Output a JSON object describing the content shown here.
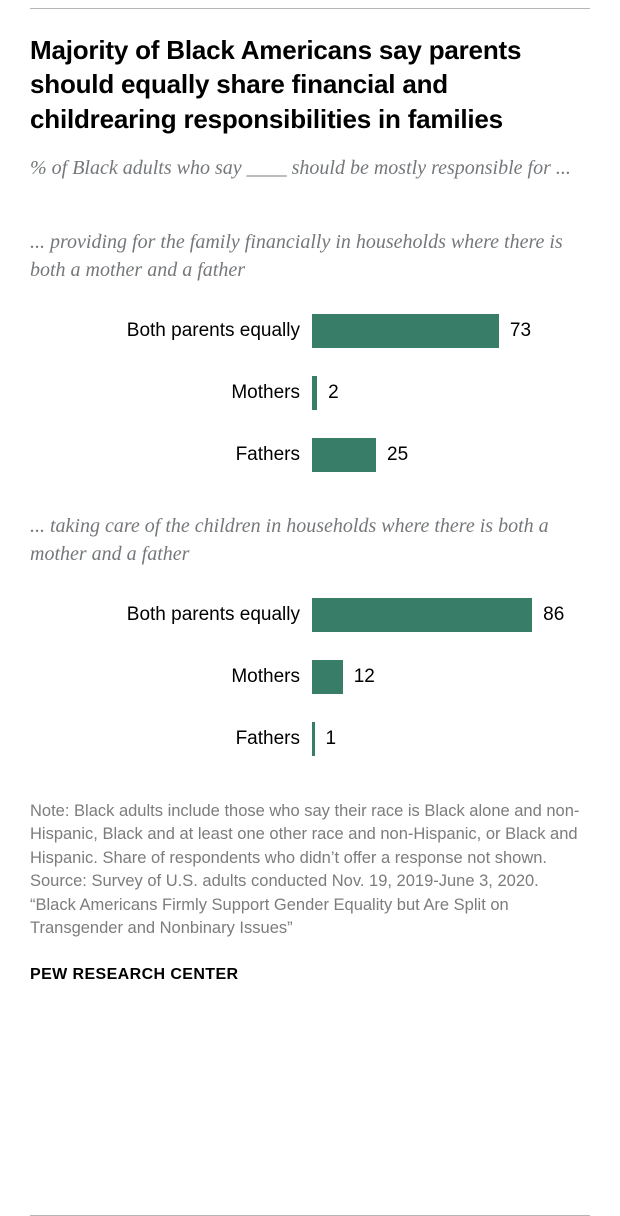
{
  "page": {
    "title": "Majority of Black Americans say parents should equally share financial and childrearing responsibilities in families",
    "subtitle": "% of Black adults who say ____ should be mostly responsible for ...",
    "brand": "PEW RESEARCH CENTER"
  },
  "colors": {
    "bar": "#377d68",
    "text_gray": "#75787b"
  },
  "chart_data": [
    {
      "type": "bar",
      "orientation": "horizontal",
      "title": "... providing for the family financially in households where there is both a mother and a father",
      "categories": [
        "Both parents equally",
        "Mothers",
        "Fathers"
      ],
      "values": [
        73,
        2,
        25
      ],
      "xlim": [
        0,
        100
      ],
      "data_labels": true,
      "grid": false,
      "legend": false,
      "bar_color": "#377d68"
    },
    {
      "type": "bar",
      "orientation": "horizontal",
      "title": "... taking care of the children in households where there is both a mother and a father",
      "categories": [
        "Both parents equally",
        "Mothers",
        "Fathers"
      ],
      "values": [
        86,
        12,
        1
      ],
      "xlim": [
        0,
        100
      ],
      "data_labels": true,
      "grid": false,
      "legend": false,
      "bar_color": "#377d68"
    }
  ],
  "footer": {
    "note": "Note: Black adults include those who say their race is Black alone and non-Hispanic, Black and at least one other race and non-Hispanic, or Black and Hispanic. Share of respondents who didn’t offer a response not shown.",
    "source": "Source: Survey of U.S. adults conducted Nov. 19, 2019-June 3, 2020.",
    "citation": "“Black Americans Firmly Support Gender Equality but Are Split on Transgender and Nonbinary Issues”"
  }
}
